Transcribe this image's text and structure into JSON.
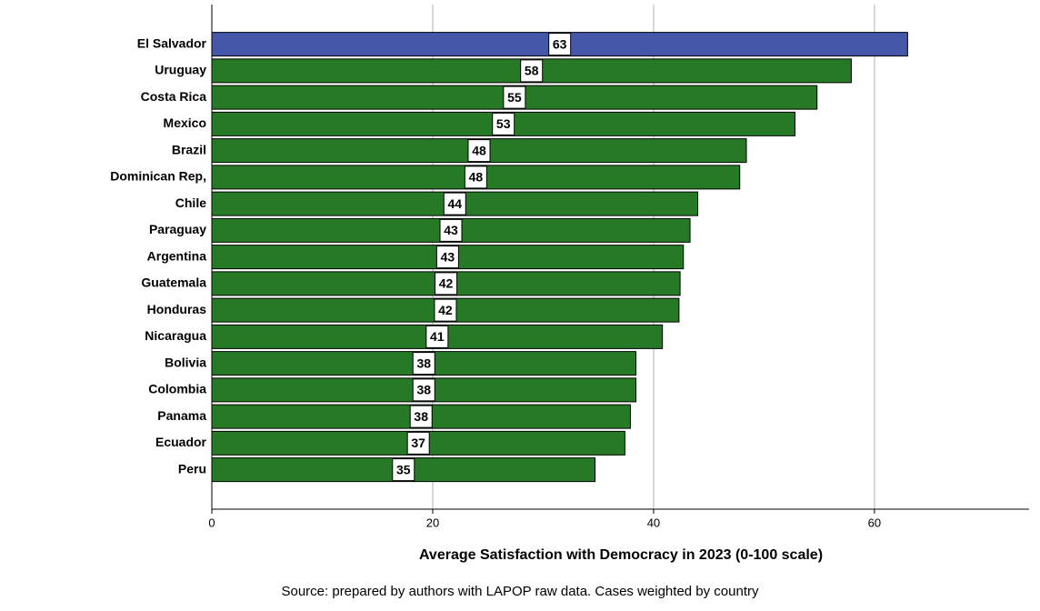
{
  "chart_data": {
    "type": "hbar",
    "x_label": "Average Satisfaction with Democracy in 2023 (0-100 scale)",
    "source": "Source: prepared by authors with LAPOP raw data. Cases weighted by country",
    "categories": [
      "El Salvador",
      "Uruguay",
      "Costa Rica",
      "Mexico",
      "Brazil",
      "Dominican Rep,",
      "Chile",
      "Paraguay",
      "Argentina",
      "Guatemala",
      "Honduras",
      "Nicaragua",
      "Bolivia",
      "Colombia",
      "Panama",
      "Ecuador",
      "Peru"
    ],
    "values": [
      63.0,
      57.9,
      54.8,
      52.8,
      48.4,
      47.8,
      44.0,
      43.3,
      42.7,
      42.4,
      42.3,
      40.8,
      38.4,
      38.4,
      37.9,
      37.4,
      34.7
    ],
    "value_labels": [
      "63",
      "58",
      "55",
      "53",
      "48",
      "48",
      "44",
      "43",
      "43",
      "42",
      "42",
      "41",
      "38",
      "38",
      "38",
      "37",
      "35"
    ],
    "colors": [
      "#4457a8",
      "#267a26",
      "#267a26",
      "#267a26",
      "#267a26",
      "#267a26",
      "#267a26",
      "#267a26",
      "#267a26",
      "#267a26",
      "#267a26",
      "#267a26",
      "#267a26",
      "#267a26",
      "#267a26",
      "#267a26",
      "#267a26"
    ],
    "xlim": [
      0,
      74
    ],
    "xticks": [
      0,
      20,
      40,
      60
    ],
    "grid": true
  }
}
